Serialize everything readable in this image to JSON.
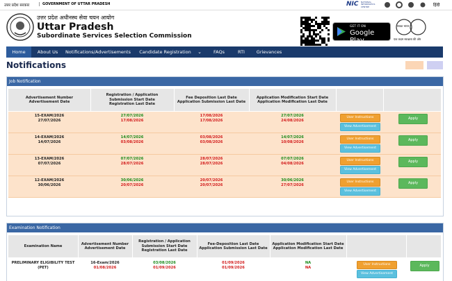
{
  "top_bar": {
    "state_hindi": "उत्तर प्रदेश सरकार",
    "government": "GOVERNMENT OF UTTAR PRADESH",
    "nic": "NIC",
    "nic_full": "NATIONAL INFORMATICS CENTRE",
    "language": "हिंदी"
  },
  "header": {
    "title_hindi": "उत्तर प्रदेश अधीनस्थ सेवा चयन आयोग",
    "title": "Uttar Pradesh",
    "subtitle": "Subordinate Services Selection Commission",
    "play_badge": {
      "small": "GET IT ON",
      "large": "Google Play"
    },
    "swachh": {
      "title": "स्वच्छ भारत",
      "tagline": "एक कदम स्वच्छता की ओर"
    }
  },
  "nav": [
    "Home",
    "About Us",
    "Notifications/Advertisements",
    "Candidate Registration",
    "FAQs",
    "RTI",
    "Grievances"
  ],
  "page_title": "Notifications",
  "job_notification": {
    "title": "Job Notification",
    "columns": [
      [
        "Advertisement Number",
        "Advertisement Date"
      ],
      [
        "Registration / Application",
        "Submission  Start Date",
        "Registration Last Date"
      ],
      [
        "Fee Deposition Last Date",
        "Application Submission Last Date"
      ],
      [
        "Application Modification Start Date",
        "Application Modification Last Date"
      ]
    ],
    "rows": [
      [
        "15-EXAM/2026",
        "27/07/2026",
        "27/07/2026",
        "17/08/2026",
        "17/08/2026",
        "17/08/2026",
        "27/07/2026",
        "24/08/2026"
      ],
      [
        "14-EXAM/2026",
        "14/07/2026",
        "14/07/2026",
        "03/08/2026",
        "03/08/2026",
        "03/08/2026",
        "14/07/2026",
        "10/08/2026"
      ],
      [
        "13-EXAM/2026",
        "07/07/2026",
        "07/07/2026",
        "28/07/2026",
        "28/07/2026",
        "28/07/2026",
        "07/07/2026",
        "04/08/2026"
      ],
      [
        "12-EXAM/2026",
        "30/06/2026",
        "30/06/2026",
        "20/07/2026",
        "20/07/2026",
        "20/07/2026",
        "30/06/2026",
        "27/07/2026"
      ]
    ],
    "buttons": {
      "instructions": "User Instructions",
      "view": "View Advertisement",
      "apply": "Apply"
    }
  },
  "exam_notification": {
    "title": "Examination Notification",
    "columns": [
      [
        "Examination Name"
      ],
      [
        "Advertisement Number",
        "Advertisement Date"
      ],
      [
        "Registration / Application",
        "Submission  Start Date",
        "Registration Last Date"
      ],
      [
        "Fee-Deposition Last Date",
        "Application Submission Last Date"
      ],
      [
        "Application Modification Start Date",
        "Application Modification Last Date"
      ]
    ],
    "rows": [
      [
        "PRELIMINARY ELIGIBILITY TEST (PET)",
        "16-Exam/2026",
        "01/08/2026",
        "03/08/2026",
        "01/09/2026",
        "01/09/2026",
        "01/09/2026",
        "NA",
        "NA"
      ]
    ],
    "buttons": {
      "instructions": "User Instructions",
      "view": "View Advertisement",
      "apply": "Apply"
    }
  }
}
